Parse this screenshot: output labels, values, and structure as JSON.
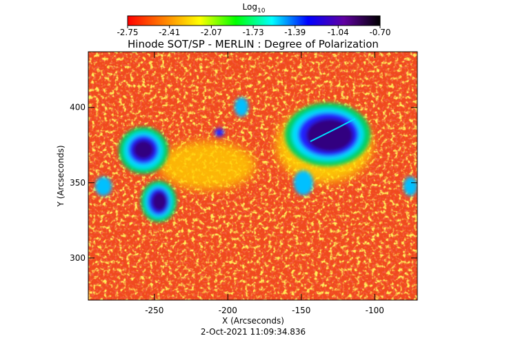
{
  "chart_data": {
    "type": "heatmap",
    "title": "Hinode SOT/SP - MERLIN : Degree of Polarization",
    "xlabel": "X (Arcseconds)",
    "ylabel": "Y (Arcseconds)",
    "footer": "2-Oct-2021 11:09:34.836",
    "xlim": [
      -295,
      -71
    ],
    "ylim": [
      272,
      437
    ],
    "xticks": [
      -250,
      -200,
      -150,
      -100
    ],
    "yticks": [
      300,
      350,
      400
    ],
    "colorbar": {
      "title": "Log",
      "title_subscript": "10",
      "lim": [
        -2.75,
        -0.7
      ],
      "ticks": [
        -2.75,
        -2.41,
        -2.07,
        -1.73,
        -1.39,
        -1.04,
        {
          "value": -0.7,
          "label": "-0.70"
        }
      ],
      "colormap": [
        "#ff0000",
        "#ff7f00",
        "#ffff00",
        "#00ff00",
        "#00ffff",
        "#0000ff",
        "#6000a0",
        "#000000"
      ]
    }
  }
}
